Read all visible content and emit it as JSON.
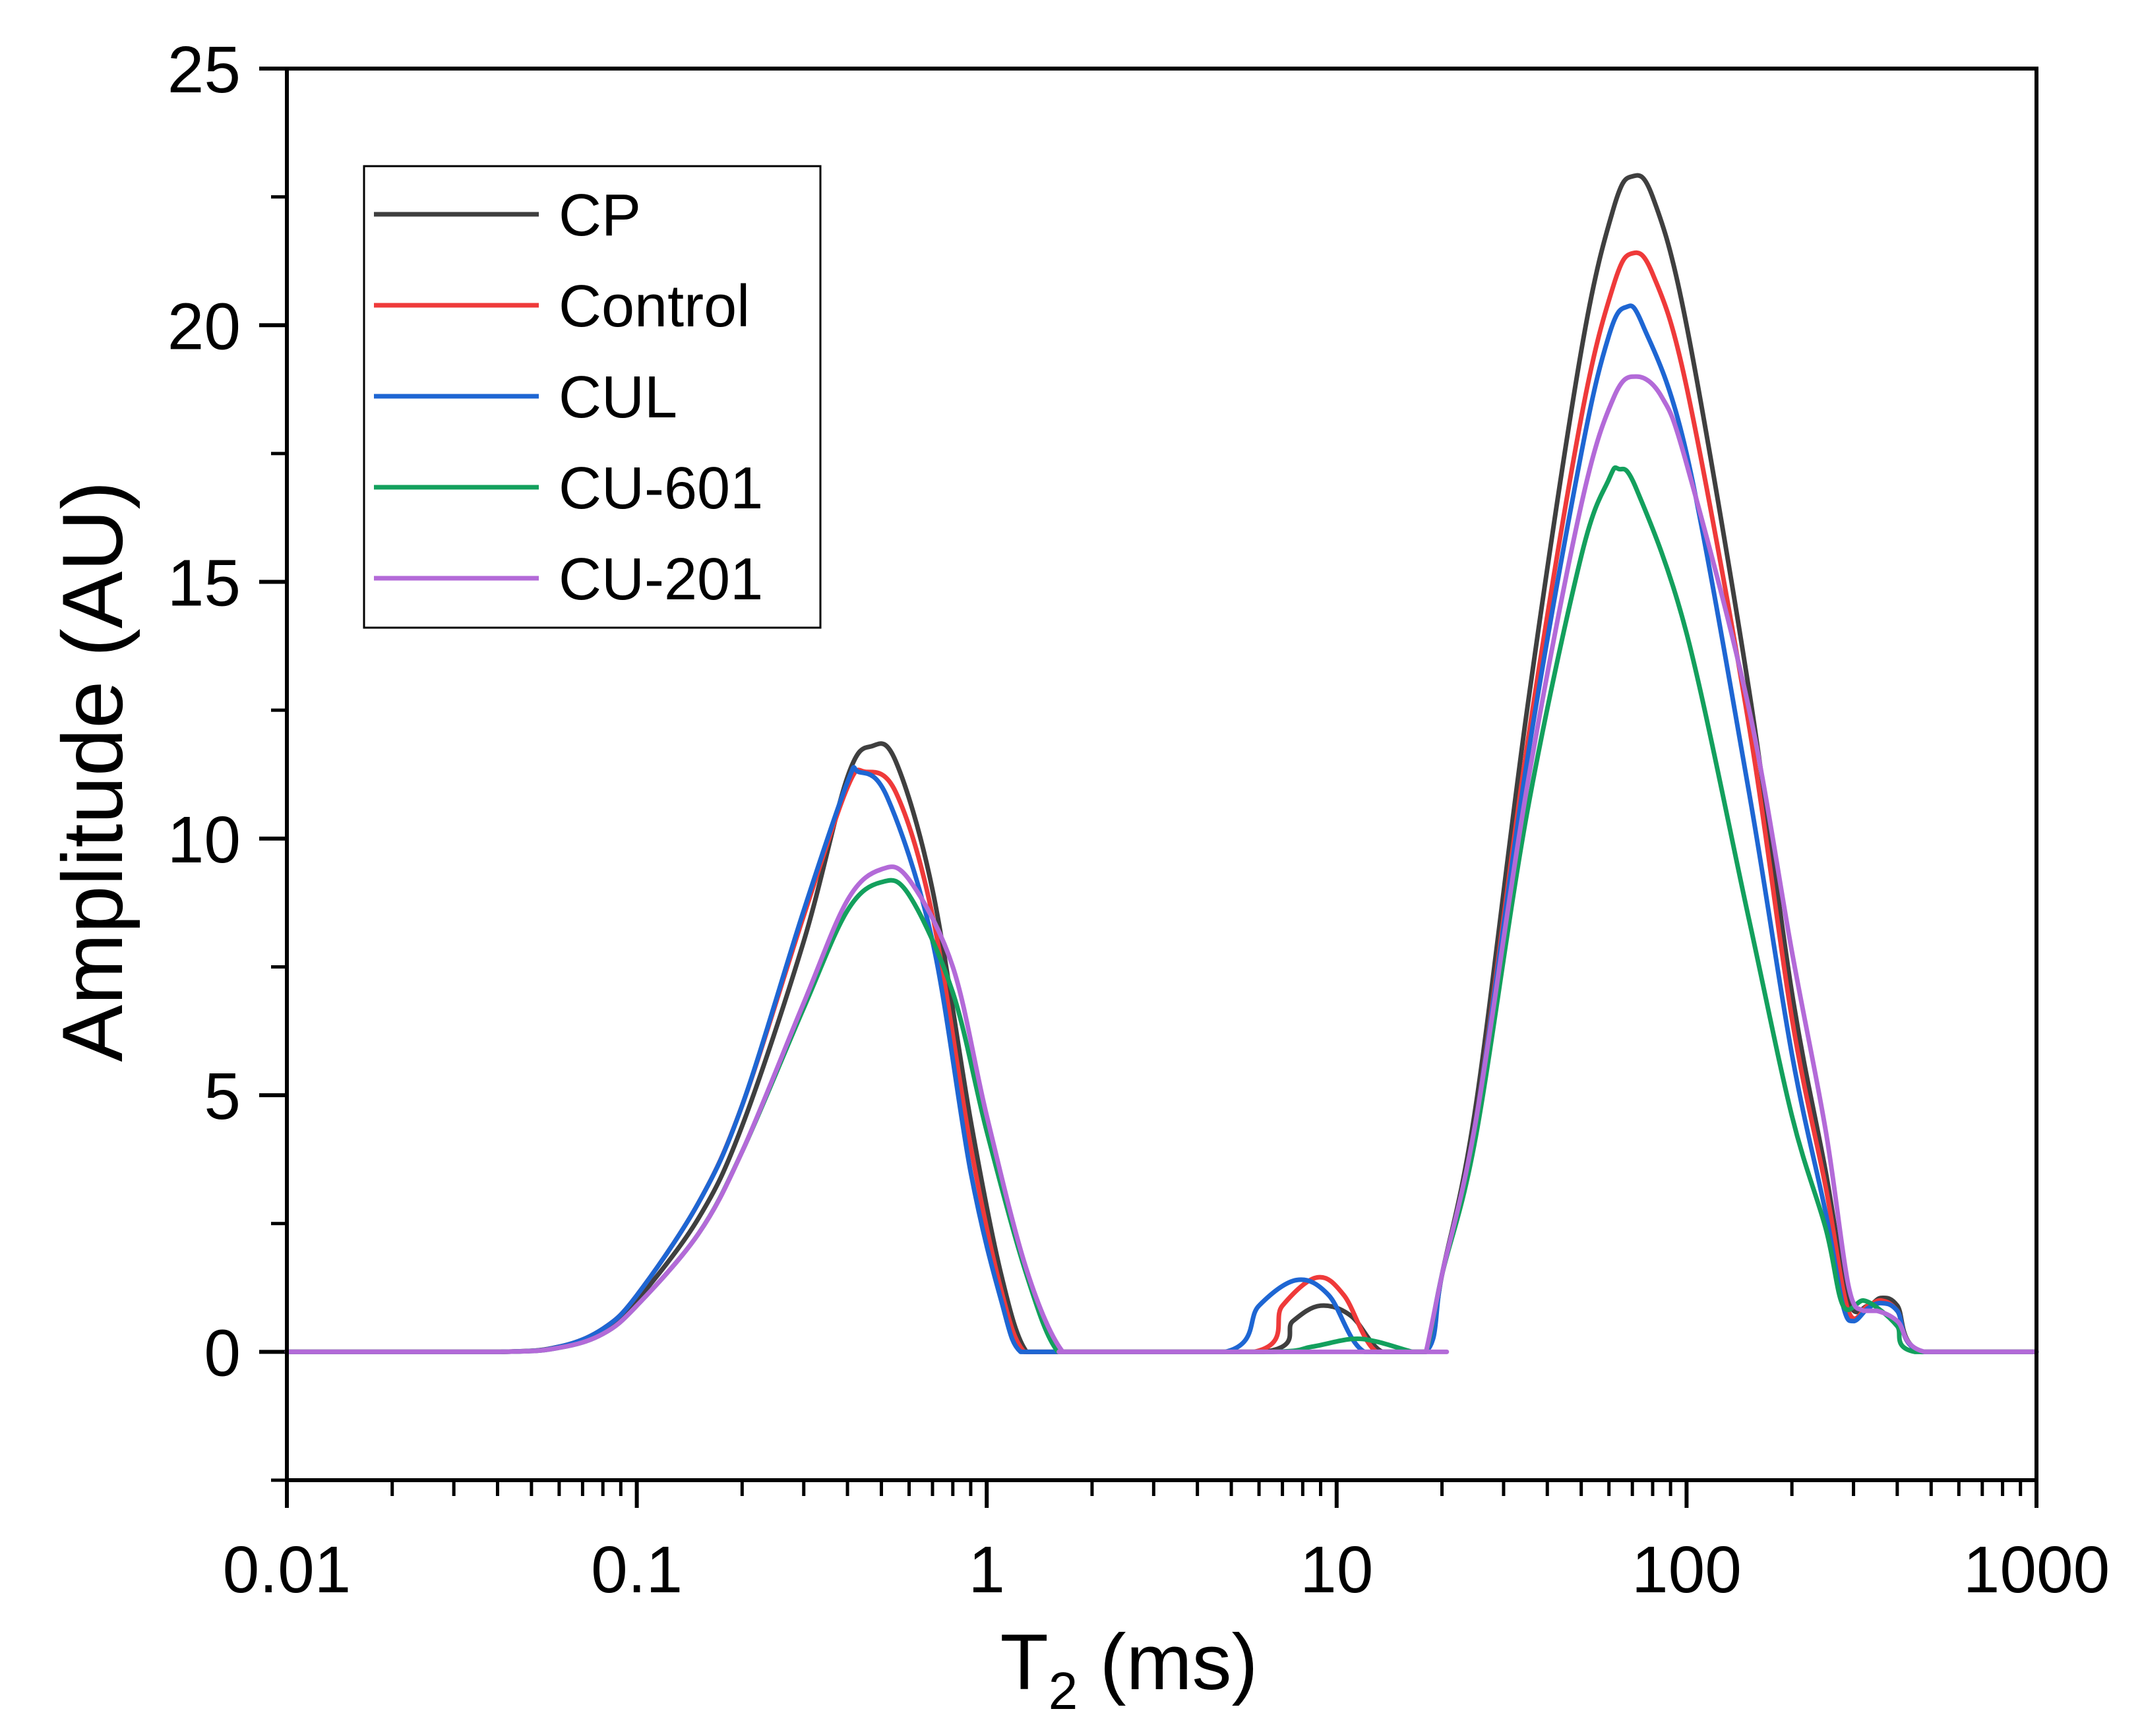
{
  "chart_data": {
    "type": "line",
    "xscale": "log",
    "xlim": [
      0.01,
      1000
    ],
    "ylim": [
      -2.5,
      25
    ],
    "xlabel_main": "T",
    "xlabel_sub": "2",
    "xlabel_unit": " (ms)",
    "ylabel": "Amplitude (AU)",
    "x_ticks": [
      0.01,
      0.1,
      1,
      10,
      100,
      1000
    ],
    "x_tick_labels": [
      "0.01",
      "0.1",
      "1",
      "10",
      "100",
      "1000"
    ],
    "y_ticks": [
      0,
      5,
      10,
      15,
      20,
      25
    ],
    "y_tick_labels": [
      "0",
      "5",
      "10",
      "15",
      "20",
      "25"
    ],
    "legend_position": "top-left",
    "series": [
      {
        "name": "CP",
        "color": "#3f3f3f",
        "points": [
          [
            0.01,
            0
          ],
          [
            0.04,
            0
          ],
          [
            0.06,
            0.1
          ],
          [
            0.08,
            0.4
          ],
          [
            0.1,
            1.0
          ],
          [
            0.15,
            2.6
          ],
          [
            0.2,
            4.4
          ],
          [
            0.3,
            8.0
          ],
          [
            0.4,
            11.2
          ],
          [
            0.47,
            11.8
          ],
          [
            0.55,
            11.5
          ],
          [
            0.7,
            9.0
          ],
          [
            0.9,
            4.5
          ],
          [
            1.1,
            1.5
          ],
          [
            1.3,
            0
          ],
          [
            1.6,
            0
          ],
          [
            6.2,
            0
          ],
          [
            7.5,
            0.6
          ],
          [
            9,
            0.9
          ],
          [
            11,
            0.7
          ],
          [
            13.5,
            0
          ],
          [
            18,
            0
          ],
          [
            20,
            1.5
          ],
          [
            25,
            4.8
          ],
          [
            35,
            12.5
          ],
          [
            50,
            19.5
          ],
          [
            62,
            22.3
          ],
          [
            70,
            22.9
          ],
          [
            80,
            22.5
          ],
          [
            100,
            20.0
          ],
          [
            150,
            13.0
          ],
          [
            200,
            7.0
          ],
          [
            250,
            3.5
          ],
          [
            290,
            1.0
          ],
          [
            330,
            0.9
          ],
          [
            360,
            1.05
          ],
          [
            400,
            0.9
          ],
          [
            470,
            0
          ],
          [
            1000,
            0
          ]
        ]
      },
      {
        "name": "Control",
        "color": "#ef3a3a",
        "points": [
          [
            0.01,
            0
          ],
          [
            0.04,
            0
          ],
          [
            0.06,
            0.1
          ],
          [
            0.08,
            0.45
          ],
          [
            0.1,
            1.1
          ],
          [
            0.15,
            2.9
          ],
          [
            0.2,
            4.8
          ],
          [
            0.3,
            8.5
          ],
          [
            0.4,
            11.0
          ],
          [
            0.45,
            11.3
          ],
          [
            0.55,
            10.9
          ],
          [
            0.7,
            8.5
          ],
          [
            0.9,
            4.0
          ],
          [
            1.1,
            1.2
          ],
          [
            1.28,
            0
          ],
          [
            1.6,
            0
          ],
          [
            5.8,
            0
          ],
          [
            7,
            0.9
          ],
          [
            8.8,
            1.45
          ],
          [
            10.5,
            1.1
          ],
          [
            13,
            0
          ],
          [
            18,
            0
          ],
          [
            20,
            1.5
          ],
          [
            25,
            4.5
          ],
          [
            35,
            11.8
          ],
          [
            50,
            18.2
          ],
          [
            62,
            20.8
          ],
          [
            70,
            21.4
          ],
          [
            80,
            21.0
          ],
          [
            100,
            18.8
          ],
          [
            150,
            12.3
          ],
          [
            200,
            6.5
          ],
          [
            250,
            3.2
          ],
          [
            290,
            0.8
          ],
          [
            330,
            0.9
          ],
          [
            360,
            1.0
          ],
          [
            400,
            0.8
          ],
          [
            470,
            0
          ],
          [
            1000,
            0
          ]
        ]
      },
      {
        "name": "CUL",
        "color": "#1e66d3",
        "points": [
          [
            0.01,
            0
          ],
          [
            0.04,
            0
          ],
          [
            0.06,
            0.1
          ],
          [
            0.08,
            0.45
          ],
          [
            0.1,
            1.1
          ],
          [
            0.15,
            2.9
          ],
          [
            0.2,
            4.8
          ],
          [
            0.3,
            8.6
          ],
          [
            0.4,
            11.1
          ],
          [
            0.43,
            11.3
          ],
          [
            0.52,
            10.8
          ],
          [
            0.7,
            8.0
          ],
          [
            0.9,
            3.5
          ],
          [
            1.1,
            1.0
          ],
          [
            1.25,
            0
          ],
          [
            1.6,
            0
          ],
          [
            4.8,
            0
          ],
          [
            6,
            0.9
          ],
          [
            7.7,
            1.4
          ],
          [
            9.5,
            1.1
          ],
          [
            12,
            0
          ],
          [
            18,
            0
          ],
          [
            20,
            1.5
          ],
          [
            25,
            4.5
          ],
          [
            35,
            11.5
          ],
          [
            50,
            17.5
          ],
          [
            60,
            19.8
          ],
          [
            67,
            20.35
          ],
          [
            75,
            20.0
          ],
          [
            100,
            17.5
          ],
          [
            150,
            11.0
          ],
          [
            200,
            5.8
          ],
          [
            250,
            2.7
          ],
          [
            280,
            0.9
          ],
          [
            300,
            0.6
          ],
          [
            330,
            0.85
          ],
          [
            360,
            0.95
          ],
          [
            400,
            0.8
          ],
          [
            470,
            0
          ],
          [
            1000,
            0
          ]
        ]
      },
      {
        "name": "CU-601",
        "color": "#13a05d",
        "points": [
          [
            0.01,
            0
          ],
          [
            0.04,
            0
          ],
          [
            0.06,
            0.08
          ],
          [
            0.08,
            0.35
          ],
          [
            0.1,
            0.9
          ],
          [
            0.15,
            2.3
          ],
          [
            0.2,
            3.9
          ],
          [
            0.3,
            6.7
          ],
          [
            0.4,
            8.6
          ],
          [
            0.5,
            9.15
          ],
          [
            0.6,
            8.9
          ],
          [
            0.8,
            7.0
          ],
          [
            1.0,
            4.3
          ],
          [
            1.3,
            1.5
          ],
          [
            1.6,
            0
          ],
          [
            2,
            0
          ],
          [
            6.5,
            0
          ],
          [
            8.5,
            0.1
          ],
          [
            11,
            0.25
          ],
          [
            13,
            0.2
          ],
          [
            16.5,
            0
          ],
          [
            18,
            0
          ],
          [
            20,
            1.5
          ],
          [
            25,
            4.2
          ],
          [
            35,
            10.5
          ],
          [
            50,
            15.5
          ],
          [
            60,
            17.0
          ],
          [
            64,
            17.2
          ],
          [
            72,
            16.8
          ],
          [
            100,
            14.0
          ],
          [
            150,
            8.5
          ],
          [
            200,
            4.6
          ],
          [
            250,
            2.4
          ],
          [
            280,
            0.9
          ],
          [
            320,
            1.0
          ],
          [
            360,
            0.8
          ],
          [
            400,
            0.5
          ],
          [
            450,
            0
          ],
          [
            1000,
            0
          ]
        ]
      },
      {
        "name": "CU-201",
        "color": "#b36ad8",
        "points": [
          [
            0.01,
            0
          ],
          [
            0.04,
            0
          ],
          [
            0.06,
            0.08
          ],
          [
            0.08,
            0.35
          ],
          [
            0.1,
            0.9
          ],
          [
            0.15,
            2.3
          ],
          [
            0.2,
            3.9
          ],
          [
            0.3,
            6.8
          ],
          [
            0.4,
            8.8
          ],
          [
            0.5,
            9.4
          ],
          [
            0.6,
            9.2
          ],
          [
            0.8,
            7.5
          ],
          [
            1.0,
            4.6
          ],
          [
            1.3,
            1.6
          ],
          [
            1.65,
            0
          ],
          [
            2,
            0
          ],
          [
            17.5,
            0
          ],
          [
            18,
            0
          ],
          [
            20,
            1.5
          ],
          [
            25,
            4.5
          ],
          [
            35,
            11.0
          ],
          [
            50,
            16.5
          ],
          [
            62,
            18.6
          ],
          [
            72,
            19.0
          ],
          [
            85,
            18.6
          ],
          [
            100,
            17.3
          ],
          [
            150,
            12.6
          ],
          [
            200,
            7.8
          ],
          [
            250,
            4.3
          ],
          [
            290,
            1.3
          ],
          [
            320,
            0.8
          ],
          [
            350,
            0.8
          ],
          [
            400,
            0.6
          ],
          [
            480,
            0
          ],
          [
            1000,
            0
          ]
        ]
      }
    ]
  }
}
